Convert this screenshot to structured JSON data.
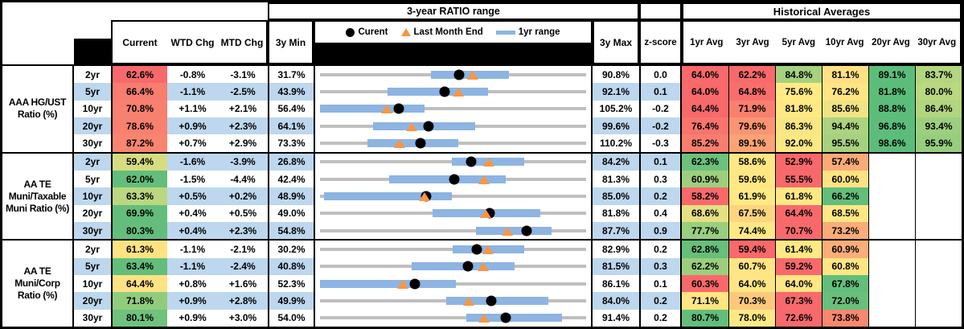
{
  "header": {
    "range_title": "3-year RATIO range",
    "hist_title": "Historical Averages",
    "legend": {
      "current_label": "Curent",
      "last_month_label": "Last Month End",
      "range_label": "1yr range"
    },
    "col_current": "Current",
    "col_wtd": "WTD Chg",
    "col_mtd": "MTD Chg",
    "col_min": "3y Min",
    "col_max": "3y Max",
    "col_z": "z-score",
    "avg_cols": [
      "1yr Avg",
      "3yr Avg",
      "5yr Avg",
      "10yr Avg",
      "20yr Avg",
      "30yr Avg"
    ]
  },
  "style_colors": {
    "stripe": "#BDD7EE",
    "track": "#BFBFBF",
    "range_bar": "#8DB4E2",
    "dot": "#000000",
    "triangle": "#F79646",
    "header_fill": "#000000"
  },
  "chart_data": {
    "type": "table",
    "title": "3-year RATIO range",
    "row_chart_type": "range-dot-plot",
    "legend": [
      "Curent",
      "Last Month End",
      "1yr range"
    ],
    "value_units": "percent",
    "groups": [
      {
        "name": "AAA HG/UST Ratio (%)",
        "rows": [
          {
            "maturity": "2yr",
            "striped": false,
            "current": 62.6,
            "current_color": "#F8696B",
            "wtd_chg": -0.8,
            "mtd_chg": -3.1,
            "min_3y": 31.7,
            "max_3y": 90.8,
            "z_score": 0.0,
            "range_1yr_est": [
              56.3,
              73.7
            ],
            "last_month_end": 65.7,
            "avg_values": [
              64.0,
              62.2,
              84.8,
              81.1,
              89.1,
              83.7
            ],
            "avg_colors": [
              "#F8696B",
              "#F8696B",
              "#A6D17F",
              "#FFE083",
              "#5CBD7B",
              "#B5D680"
            ]
          },
          {
            "maturity": "5yr",
            "striped": true,
            "current": 66.4,
            "current_color": "#F87C70",
            "wtd_chg": -1.1,
            "mtd_chg": -2.5,
            "min_3y": 43.9,
            "max_3y": 92.1,
            "z_score": 0.1,
            "range_1yr_est": [
              56.2,
              74.4
            ],
            "last_month_end": 68.9,
            "avg_values": [
              64.0,
              64.8,
              75.6,
              76.2,
              81.8,
              80.0
            ],
            "avg_colors": [
              "#F8696B",
              "#F86E6C",
              "#FFEB84",
              "#FFE584",
              "#5CBD7B",
              "#BAD880"
            ]
          },
          {
            "maturity": "10yr",
            "striped": false,
            "current": 70.8,
            "current_color": "#F8806F",
            "wtd_chg": 1.1,
            "mtd_chg": 2.1,
            "min_3y": 56.4,
            "max_3y": 105.2,
            "z_score": -0.2,
            "range_1yr_est": [
              56.4,
              75.5
            ],
            "last_month_end": 68.7,
            "avg_values": [
              64.4,
              71.9,
              81.8,
              85.6,
              88.8,
              86.4
            ],
            "avg_colors": [
              "#F8696B",
              "#F9806F",
              "#FFE984",
              "#EFE383",
              "#5CBD7B",
              "#B2D57F"
            ]
          },
          {
            "maturity": "20yr",
            "striped": true,
            "current": 78.6,
            "current_color": "#F8806F",
            "wtd_chg": 0.9,
            "mtd_chg": 2.3,
            "min_3y": 64.1,
            "max_3y": 99.6,
            "z_score": -0.2,
            "range_1yr_est": [
              71.2,
              84.8
            ],
            "last_month_end": 76.3,
            "avg_values": [
              76.4,
              79.6,
              86.3,
              94.4,
              96.8,
              93.4
            ],
            "avg_colors": [
              "#F9746D",
              "#FA9472",
              "#F8E783",
              "#ACD37F",
              "#5CBD7B",
              "#9CD07E"
            ]
          },
          {
            "maturity": "30yr",
            "striped": false,
            "current": 87.2,
            "current_color": "#F8856F",
            "wtd_chg": 0.7,
            "mtd_chg": 2.9,
            "min_3y": 73.3,
            "max_3y": 110.2,
            "z_score": -0.3,
            "range_1yr_est": [
              79.9,
              92.5
            ],
            "last_month_end": 84.3,
            "avg_values": [
              85.2,
              89.1,
              92.0,
              95.5,
              98.6,
              95.9
            ],
            "avg_colors": [
              "#F97E70",
              "#FBA375",
              "#FAE883",
              "#A7D17F",
              "#5CBD7B",
              "#97CE7E"
            ]
          }
        ]
      },
      {
        "name": "AA TE Muni/Taxable Muni Ratio (%)",
        "rows": [
          {
            "maturity": "2yr",
            "striped": true,
            "current": 59.4,
            "current_color": "#D8DC81",
            "wtd_chg": -1.6,
            "mtd_chg": -3.9,
            "min_3y": 26.8,
            "max_3y": 84.2,
            "z_score": 0.1,
            "range_1yr_est": [
              55.2,
              70.9
            ],
            "last_month_end": 63.3,
            "avg_values": [
              62.3,
              58.6,
              52.9,
              57.4,
              null,
              null
            ],
            "avg_colors": [
              "#6CC17C",
              "#FFE884",
              "#F8696B",
              "#FBAB77",
              null,
              null
            ]
          },
          {
            "maturity": "5yr",
            "striped": false,
            "current": 62.0,
            "current_color": "#63BE7B",
            "wtd_chg": -1.5,
            "mtd_chg": -4.4,
            "min_3y": 42.4,
            "max_3y": 81.3,
            "z_score": 0.3,
            "range_1yr_est": [
              52.5,
              69.5
            ],
            "last_month_end": 66.4,
            "avg_values": [
              60.9,
              59.6,
              55.5,
              60.0,
              null,
              null
            ],
            "avg_colors": [
              "#9DCF7E",
              "#FFE884",
              "#F8696B",
              "#FFE383",
              null,
              null
            ]
          },
          {
            "maturity": "10yr",
            "striped": true,
            "current": 63.3,
            "current_color": "#BBD780",
            "wtd_chg": 0.5,
            "mtd_chg": 0.2,
            "min_3y": 48.9,
            "max_3y": 85.0,
            "z_score": 0.2,
            "range_1yr_est": [
              49.4,
              66.8
            ],
            "last_month_end": 63.1,
            "avg_values": [
              58.2,
              61.9,
              61.8,
              66.2,
              null,
              null
            ],
            "avg_colors": [
              "#F8696B",
              "#FFE984",
              "#FFE884",
              "#63BE7B",
              null,
              null
            ]
          },
          {
            "maturity": "20yr",
            "striped": false,
            "current": 69.9,
            "current_color": "#63BE7B",
            "wtd_chg": 0.4,
            "mtd_chg": 0.5,
            "min_3y": 49.0,
            "max_3y": 81.8,
            "z_score": 0.4,
            "range_1yr_est": [
              62.9,
              76.2
            ],
            "last_month_end": 69.4,
            "avg_values": [
              68.6,
              67.5,
              64.4,
              68.5,
              null,
              null
            ],
            "avg_colors": [
              "#E4E083",
              "#FDD580",
              "#F8696B",
              "#FFE884",
              null,
              null
            ]
          },
          {
            "maturity": "30yr",
            "striped": true,
            "current": 80.3,
            "current_color": "#63BE7B",
            "wtd_chg": 0.4,
            "mtd_chg": 2.3,
            "min_3y": 54.8,
            "max_3y": 87.7,
            "z_score": 0.9,
            "range_1yr_est": [
              74.1,
              83.4
            ],
            "last_month_end": 78.0,
            "avg_values": [
              77.7,
              74.4,
              70.7,
              73.2,
              null,
              null
            ],
            "avg_colors": [
              "#99CE7E",
              "#FFE984",
              "#F8696B",
              "#FBAC78",
              null,
              null
            ]
          }
        ]
      },
      {
        "name": "AA TE Muni/Corp Ratio (%)",
        "rows": [
          {
            "maturity": "2yr",
            "striped": false,
            "current": 61.3,
            "current_color": "#FFE383",
            "wtd_chg": -1.1,
            "mtd_chg": -2.1,
            "min_3y": 30.2,
            "max_3y": 82.9,
            "z_score": 0.2,
            "range_1yr_est": [
              56.4,
              70.7
            ],
            "last_month_end": 63.4,
            "avg_values": [
              62.8,
              59.4,
              61.4,
              60.9,
              null,
              null
            ],
            "avg_colors": [
              "#66BF7B",
              "#F8696B",
              "#FFE984",
              "#FBAE78",
              null,
              null
            ]
          },
          {
            "maturity": "5yr",
            "striped": true,
            "current": 63.4,
            "current_color": "#63BE7B",
            "wtd_chg": -1.1,
            "mtd_chg": -2.4,
            "min_3y": 40.8,
            "max_3y": 81.5,
            "z_score": 0.3,
            "range_1yr_est": [
              54.8,
              70.5
            ],
            "last_month_end": 65.8,
            "avg_values": [
              62.2,
              60.7,
              59.2,
              60.8,
              null,
              null
            ],
            "avg_colors": [
              "#9BCF7E",
              "#FFE584",
              "#F8696B",
              "#FFE684",
              null,
              null
            ]
          },
          {
            "maturity": "10yr",
            "striped": false,
            "current": 64.4,
            "current_color": "#FFE283",
            "wtd_chg": 0.8,
            "mtd_chg": 1.6,
            "min_3y": 52.3,
            "max_3y": 86.1,
            "z_score": 0.1,
            "range_1yr_est": [
              52.3,
              69.6
            ],
            "last_month_end": 62.8,
            "avg_values": [
              60.3,
              64.0,
              64.0,
              67.8,
              null,
              null
            ],
            "avg_colors": [
              "#F8696B",
              "#FFE684",
              "#FFE584",
              "#63BE7B",
              null,
              null
            ]
          },
          {
            "maturity": "20yr",
            "striped": true,
            "current": 71.8,
            "current_color": "#8FCD7D",
            "wtd_chg": 0.9,
            "mtd_chg": 2.8,
            "min_3y": 49.9,
            "max_3y": 84.0,
            "z_score": 0.2,
            "range_1yr_est": [
              66.1,
              79.2
            ],
            "last_month_end": 69.0,
            "avg_values": [
              71.1,
              70.3,
              67.3,
              72.0,
              null,
              null
            ],
            "avg_colors": [
              "#FFE583",
              "#FCC97C",
              "#F8696B",
              "#68C07B",
              null,
              null
            ]
          },
          {
            "maturity": "30yr",
            "striped": false,
            "current": 80.1,
            "current_color": "#70C27C",
            "wtd_chg": 0.9,
            "mtd_chg": 3.0,
            "min_3y": 54.0,
            "max_3y": 91.4,
            "z_score": 0.2,
            "range_1yr_est": [
              74.6,
              88.0
            ],
            "last_month_end": 77.1,
            "avg_values": [
              80.7,
              78.0,
              72.6,
              73.8,
              null,
              null
            ],
            "avg_colors": [
              "#63BE7B",
              "#FFE884",
              "#F8696B",
              "#F9886F",
              null,
              null
            ]
          }
        ]
      }
    ]
  }
}
